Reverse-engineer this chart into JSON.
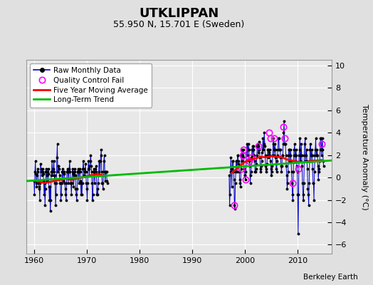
{
  "title": "UTKLIPPAN",
  "subtitle": "55.950 N, 15.701 E (Sweden)",
  "ylabel": "Temperature Anomaly (°C)",
  "attribution": "Berkeley Earth",
  "xlim": [
    1958.5,
    2016.5
  ],
  "ylim": [
    -6.8,
    10.5
  ],
  "yticks": [
    -6,
    -4,
    -2,
    0,
    2,
    4,
    6,
    8,
    10
  ],
  "xticks": [
    1960,
    1970,
    1980,
    1990,
    2000,
    2010
  ],
  "fig_bg_color": "#e0e0e0",
  "plot_bg_color": "#e8e8e8",
  "grid_color": "#ffffff",
  "raw_color": "#0000cc",
  "dot_color": "black",
  "qc_color": "magenta",
  "ma_color": "red",
  "trend_color": "#00bb00",
  "raw_monthly_1": {
    "x": [
      1960.0,
      1960.083,
      1960.167,
      1960.25,
      1960.333,
      1960.417,
      1960.5,
      1960.583,
      1960.667,
      1960.75,
      1960.833,
      1960.917,
      1961.0,
      1961.083,
      1961.167,
      1961.25,
      1961.333,
      1961.417,
      1961.5,
      1961.583,
      1961.667,
      1961.75,
      1961.833,
      1961.917,
      1962.0,
      1962.083,
      1962.167,
      1962.25,
      1962.333,
      1962.417,
      1962.5,
      1962.583,
      1962.667,
      1962.75,
      1962.833,
      1962.917,
      1963.0,
      1963.083,
      1963.167,
      1963.25,
      1963.333,
      1963.417,
      1963.5,
      1963.583,
      1963.667,
      1963.75,
      1963.833,
      1963.917,
      1964.0,
      1964.083,
      1964.167,
      1964.25,
      1964.333,
      1964.417,
      1964.5,
      1964.583,
      1964.667,
      1964.75,
      1964.833,
      1964.917,
      1965.0,
      1965.083,
      1965.167,
      1965.25,
      1965.333,
      1965.417,
      1965.5,
      1965.583,
      1965.667,
      1965.75,
      1965.833,
      1965.917,
      1966.0,
      1966.083,
      1966.167,
      1966.25,
      1966.333,
      1966.417,
      1966.5,
      1966.583,
      1966.667,
      1966.75,
      1966.833,
      1966.917,
      1967.0,
      1967.083,
      1967.167,
      1967.25,
      1967.333,
      1967.417,
      1967.5,
      1967.583,
      1967.667,
      1967.75,
      1967.833,
      1967.917,
      1968.0,
      1968.083,
      1968.167,
      1968.25,
      1968.333,
      1968.417,
      1968.5,
      1968.583,
      1968.667,
      1968.75,
      1968.833,
      1968.917,
      1969.0,
      1969.083,
      1969.167,
      1969.25,
      1969.333,
      1969.417,
      1969.5,
      1969.583,
      1969.667,
      1969.75,
      1969.833,
      1969.917,
      1970.0,
      1970.083,
      1970.167,
      1970.25,
      1970.333,
      1970.417,
      1970.5,
      1970.583,
      1970.667,
      1970.75,
      1970.833,
      1970.917,
      1971.0,
      1971.083,
      1971.167,
      1971.25,
      1971.333,
      1971.417,
      1971.5,
      1971.583,
      1971.667,
      1971.75,
      1971.833,
      1971.917,
      1972.0,
      1972.083,
      1972.167,
      1972.25,
      1972.333,
      1972.417,
      1972.5,
      1972.583,
      1972.667,
      1972.75,
      1972.833,
      1972.917,
      1973.0,
      1973.083,
      1973.167,
      1973.25,
      1973.333,
      1973.417,
      1973.5,
      1973.583,
      1973.667,
      1973.75,
      1973.833,
      1973.917
    ],
    "y": [
      -0.3,
      -1.5,
      0.5,
      1.5,
      0.3,
      -0.5,
      -0.8,
      0.2,
      0.8,
      0.5,
      -0.5,
      -1.0,
      -0.8,
      -2.0,
      -0.5,
      1.2,
      0.8,
      0.5,
      0.2,
      0.8,
      0.5,
      0.3,
      -0.3,
      -1.5,
      -0.5,
      -2.5,
      -1.0,
      0.5,
      0.8,
      0.2,
      -0.3,
      0.5,
      0.8,
      0.3,
      -0.8,
      -2.0,
      -0.8,
      -3.0,
      -2.0,
      0.2,
      0.5,
      1.5,
      0.2,
      0.5,
      0.8,
      1.5,
      0.5,
      -0.5,
      0.2,
      -2.5,
      -1.5,
      -0.5,
      1.8,
      3.0,
      0.5,
      1.0,
      1.0,
      0.8,
      0.2,
      -0.5,
      -0.5,
      -2.0,
      -1.5,
      -0.5,
      0.5,
      0.8,
      -0.3,
      0.5,
      0.5,
      0.3,
      -0.5,
      -1.0,
      -1.5,
      -2.0,
      -0.5,
      0.5,
      0.8,
      0.5,
      -0.5,
      0.5,
      0.8,
      1.5,
      0.5,
      -0.5,
      -0.5,
      -1.5,
      -0.5,
      0.5,
      0.8,
      0.3,
      -0.8,
      0.2,
      0.5,
      0.8,
      0.2,
      -1.0,
      -1.5,
      -2.0,
      -1.0,
      0.5,
      0.8,
      0.5,
      -0.5,
      0.5,
      0.8,
      0.5,
      -0.3,
      -1.5,
      -0.5,
      -1.5,
      -0.5,
      0.8,
      1.5,
      0.8,
      0.2,
      0.5,
      0.5,
      1.2,
      0.5,
      -0.5,
      -1.0,
      -2.0,
      -0.5,
      0.8,
      1.5,
      0.8,
      0.2,
      1.0,
      1.5,
      2.0,
      1.0,
      0.5,
      -0.5,
      -2.0,
      -1.5,
      0.2,
      0.8,
      0.5,
      -0.5,
      0.5,
      0.8,
      1.0,
      0.5,
      -1.5,
      -1.0,
      -1.5,
      -0.5,
      0.5,
      1.5,
      1.5,
      0.2,
      1.5,
      2.0,
      2.5,
      0.5,
      -0.5,
      -0.5,
      -1.0,
      0.2,
      1.5,
      2.0,
      0.5,
      -0.3,
      0.5,
      0.5,
      0.5,
      -0.3,
      -0.5
    ]
  },
  "raw_monthly_2": {
    "x": [
      1997.0,
      1997.083,
      1997.167,
      1997.25,
      1997.333,
      1997.417,
      1997.5,
      1997.583,
      1997.667,
      1997.75,
      1997.833,
      1997.917,
      1998.0,
      1998.083,
      1998.167,
      1998.25,
      1998.333,
      1998.417,
      1998.5,
      1998.583,
      1998.667,
      1998.75,
      1998.833,
      1998.917,
      1999.0,
      1999.083,
      1999.167,
      1999.25,
      1999.333,
      1999.417,
      1999.5,
      1999.583,
      1999.667,
      1999.75,
      1999.833,
      1999.917,
      2000.0,
      2000.083,
      2000.167,
      2000.25,
      2000.333,
      2000.417,
      2000.5,
      2000.583,
      2000.667,
      2000.75,
      2000.833,
      2000.917,
      2001.0,
      2001.083,
      2001.167,
      2001.25,
      2001.333,
      2001.417,
      2001.5,
      2001.583,
      2001.667,
      2001.75,
      2001.833,
      2001.917,
      2002.0,
      2002.083,
      2002.167,
      2002.25,
      2002.333,
      2002.417,
      2002.5,
      2002.583,
      2002.667,
      2002.75,
      2002.833,
      2002.917,
      2003.0,
      2003.083,
      2003.167,
      2003.25,
      2003.333,
      2003.417,
      2003.5,
      2003.583,
      2003.667,
      2003.75,
      2003.833,
      2003.917,
      2004.0,
      2004.083,
      2004.167,
      2004.25,
      2004.333,
      2004.417,
      2004.5,
      2004.583,
      2004.667,
      2004.75,
      2004.833,
      2004.917,
      2005.0,
      2005.083,
      2005.167,
      2005.25,
      2005.333,
      2005.417,
      2005.5,
      2005.583,
      2005.667,
      2005.75,
      2005.833,
      2005.917,
      2006.0,
      2006.083,
      2006.167,
      2006.25,
      2006.333,
      2006.417,
      2006.5,
      2006.583,
      2006.667,
      2006.75,
      2006.833,
      2006.917,
      2007.0,
      2007.083,
      2007.167,
      2007.25,
      2007.333,
      2007.417,
      2007.5,
      2007.583,
      2007.667,
      2007.75,
      2007.833,
      2007.917,
      2008.0,
      2008.083,
      2008.167,
      2008.25,
      2008.333,
      2008.417,
      2008.5,
      2008.583,
      2008.667,
      2008.75,
      2008.833,
      2008.917,
      2009.0,
      2009.083,
      2009.167,
      2009.25,
      2009.333,
      2009.417,
      2009.5,
      2009.583,
      2009.667,
      2009.75,
      2009.833,
      2009.917,
      2010.0,
      2010.083,
      2010.167,
      2010.25,
      2010.333,
      2010.417,
      2010.5,
      2010.583,
      2010.667,
      2010.75,
      2010.833,
      2010.917,
      2011.0,
      2011.083,
      2011.167,
      2011.25,
      2011.333,
      2011.417,
      2011.5,
      2011.583,
      2011.667,
      2011.75,
      2011.833,
      2011.917,
      2012.0,
      2012.083,
      2012.167,
      2012.25,
      2012.333,
      2012.417,
      2012.5,
      2012.583,
      2012.667,
      2012.75,
      2012.833,
      2012.917,
      2013.0,
      2013.083,
      2013.167,
      2013.25,
      2013.333,
      2013.417,
      2013.5,
      2013.583,
      2013.667,
      2013.75,
      2013.833,
      2013.917,
      2014.0,
      2014.083,
      2014.167,
      2014.25,
      2014.333,
      2014.417,
      2014.5,
      2014.583,
      2014.667,
      2014.75,
      2014.833,
      2014.917
    ],
    "y": [
      0.2,
      -2.5,
      -1.5,
      0.5,
      1.8,
      0.8,
      -0.8,
      0.8,
      1.5,
      1.5,
      0.5,
      -0.2,
      -2.5,
      -2.8,
      -0.5,
      0.5,
      1.5,
      1.5,
      0.5,
      2.0,
      2.0,
      1.5,
      1.2,
      0.5,
      -0.2,
      -0.5,
      -0.8,
      0.8,
      2.0,
      2.5,
      1.5,
      2.0,
      2.5,
      1.8,
      0.8,
      0.2,
      0.2,
      -0.2,
      0.5,
      1.5,
      2.5,
      3.0,
      2.0,
      2.5,
      3.0,
      2.5,
      1.5,
      1.0,
      -0.5,
      0.2,
      0.5,
      1.8,
      2.5,
      2.8,
      2.0,
      2.5,
      2.8,
      2.0,
      1.5,
      0.5,
      0.5,
      0.8,
      1.2,
      2.0,
      2.8,
      3.0,
      2.2,
      2.8,
      3.2,
      2.5,
      1.8,
      0.8,
      0.5,
      1.0,
      1.5,
      2.2,
      2.5,
      3.5,
      2.5,
      3.0,
      4.0,
      2.8,
      2.0,
      1.0,
      0.5,
      0.8,
      1.2,
      2.0,
      2.5,
      2.5,
      1.8,
      2.2,
      2.5,
      2.0,
      1.5,
      0.8,
      0.2,
      0.5,
      1.0,
      2.0,
      3.0,
      3.5,
      2.0,
      2.5,
      3.0,
      2.5,
      1.8,
      0.8,
      0.5,
      1.5,
      2.0,
      2.5,
      3.5,
      3.5,
      2.5,
      2.5,
      2.5,
      1.8,
      1.0,
      0.5,
      1.0,
      2.0,
      2.0,
      3.0,
      4.0,
      5.0,
      3.0,
      3.0,
      3.0,
      2.0,
      1.0,
      0.2,
      -1.0,
      -0.5,
      0.5,
      2.0,
      2.5,
      2.5,
      1.5,
      2.0,
      2.5,
      1.5,
      0.5,
      -0.5,
      -1.5,
      -2.0,
      0.5,
      2.0,
      2.5,
      3.0,
      1.5,
      2.0,
      2.5,
      2.0,
      1.0,
      0.5,
      -1.5,
      -5.0,
      -1.5,
      2.0,
      2.5,
      3.5,
      1.5,
      2.0,
      3.0,
      2.0,
      1.0,
      -0.5,
      -1.5,
      -2.0,
      -0.5,
      2.0,
      3.0,
      3.5,
      1.5,
      2.0,
      2.5,
      1.5,
      0.8,
      -1.0,
      -1.5,
      -2.5,
      -0.5,
      1.5,
      2.5,
      3.0,
      1.5,
      2.0,
      2.5,
      2.0,
      0.8,
      -0.5,
      -0.5,
      -2.0,
      0.5,
      2.0,
      2.5,
      3.5,
      2.0,
      2.0,
      2.5,
      2.0,
      1.0,
      -0.2,
      0.5,
      0.8,
      1.5,
      2.5,
      3.5,
      3.5,
      2.0,
      2.5,
      3.5,
      2.5,
      1.5,
      1.0
    ]
  },
  "qc_fails": [
    [
      1998.0,
      -2.5
    ],
    [
      1999.25,
      0.8
    ],
    [
      1999.583,
      2.0
    ],
    [
      1999.667,
      2.5
    ],
    [
      2000.083,
      -0.2
    ],
    [
      2000.833,
      1.5
    ],
    [
      2001.25,
      1.8
    ],
    [
      2002.583,
      2.8
    ],
    [
      2004.583,
      4.0
    ],
    [
      2004.833,
      3.5
    ],
    [
      2005.583,
      3.5
    ],
    [
      2007.333,
      4.5
    ],
    [
      2007.583,
      3.5
    ],
    [
      2009.083,
      -0.5
    ],
    [
      2010.083,
      0.8
    ],
    [
      2014.583,
      3.0
    ]
  ],
  "moving_avg_1": {
    "x": [
      1960.5,
      1962.0,
      1963.0,
      1964.0,
      1965.0,
      1966.0,
      1967.0,
      1968.0,
      1969.0,
      1970.0,
      1971.0,
      1972.0,
      1973.0
    ],
    "y": [
      -0.3,
      -0.5,
      -0.4,
      -0.3,
      -0.2,
      -0.1,
      -0.2,
      -0.1,
      0.0,
      0.1,
      0.2,
      0.3,
      0.2
    ]
  },
  "moving_avg_2": {
    "x": [
      1997.5,
      1998.0,
      1999.0,
      2000.0,
      2001.0,
      2002.0,
      2003.0,
      2004.0,
      2005.0,
      2006.0,
      2007.0,
      2008.0,
      2009.0,
      2010.0,
      2011.0,
      2012.0,
      2013.0,
      2014.0,
      2014.5
    ],
    "y": [
      0.4,
      0.6,
      1.0,
      1.4,
      1.6,
      1.7,
      1.85,
      1.8,
      1.9,
      1.85,
      1.8,
      1.6,
      1.5,
      1.4,
      1.35,
      1.4,
      1.5,
      1.5,
      1.55
    ]
  },
  "trend_x": [
    1958.5,
    2016.5
  ],
  "trend_y": [
    -0.32,
    1.52
  ],
  "legend_fontsize": 7.5,
  "title_fontsize": 13,
  "subtitle_fontsize": 9,
  "ylabel_fontsize": 8
}
